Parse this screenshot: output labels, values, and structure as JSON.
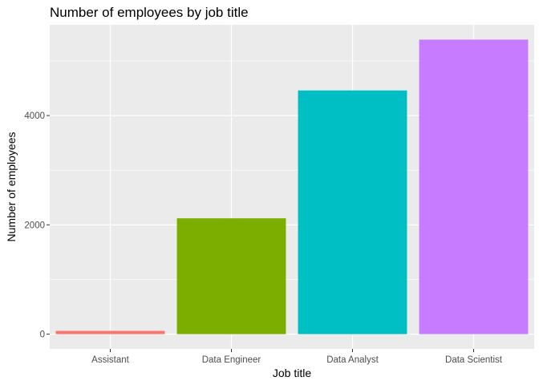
{
  "chart_data": {
    "type": "bar",
    "title": "Number of employees by job title",
    "xlabel": "Job title",
    "ylabel": "Number of employees",
    "categories": [
      "Assistant",
      "Data Engineer",
      "Data Analyst",
      "Data Scientist"
    ],
    "values": [
      60,
      2120,
      4460,
      5390
    ],
    "colors": [
      "#F8766D",
      "#7CAE00",
      "#00BFC4",
      "#C77CFF"
    ],
    "ylim": [
      -270,
      5660
    ],
    "yticks": [
      0,
      2000,
      4000
    ],
    "ytick_labels": [
      "0",
      "2000",
      "4000"
    ],
    "grid": true,
    "panel_background": "#EBEBEB",
    "legend": "none"
  }
}
